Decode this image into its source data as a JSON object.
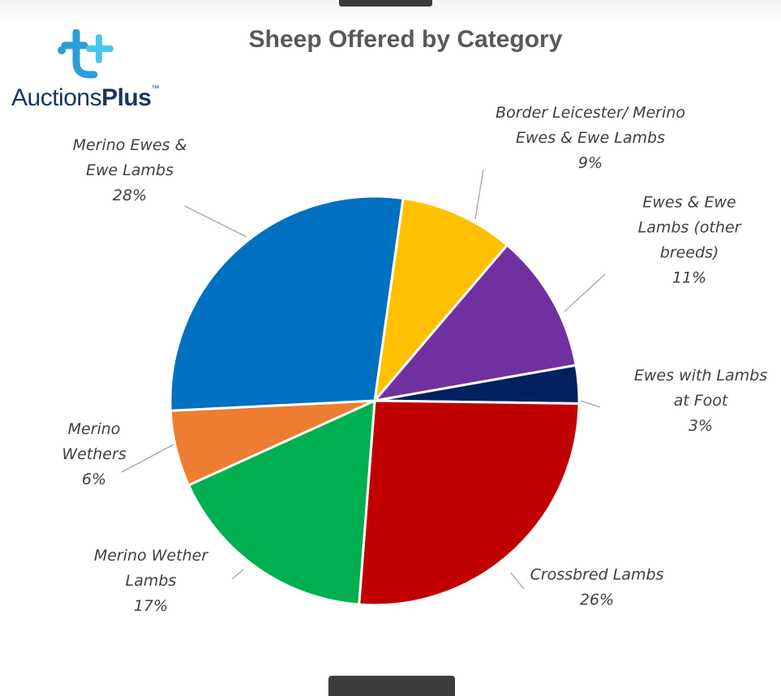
{
  "logo": {
    "brand_light": "Auctions",
    "brand_bold": "Plus",
    "trademark": "™"
  },
  "chart_data": {
    "type": "pie",
    "title": "Sheep Offered by Category",
    "slices": [
      {
        "lines": [
          "Border Leicester/ Merino",
          "Ewes & Ewe Lambs"
        ],
        "value": 9,
        "label": "9%",
        "color": "#ffc000"
      },
      {
        "lines": [
          "Ewes & Ewe",
          "Lambs (other",
          "breeds)"
        ],
        "value": 11,
        "label": "11%",
        "color": "#7030a0"
      },
      {
        "lines": [
          "Ewes with Lambs",
          "at Foot"
        ],
        "value": 3,
        "label": "3%",
        "color": "#002060"
      },
      {
        "lines": [
          "Crossbred Lambs"
        ],
        "value": 26,
        "label": "26%",
        "color": "#c00000"
      },
      {
        "lines": [
          "Merino Wether",
          "Lambs"
        ],
        "value": 17,
        "label": "17%",
        "color": "#00b050"
      },
      {
        "lines": [
          "Merino",
          "Wethers"
        ],
        "value": 6,
        "label": "6%",
        "color": "#ed7d31"
      },
      {
        "lines": [
          "Merino Ewes &",
          "Ewe Lambs"
        ],
        "value": 28,
        "label": "28%",
        "color": "#0070c0"
      }
    ],
    "start_angle_deg": 8,
    "direction": "clockwise",
    "legend": "none",
    "labels": "outside-with-leader-lines"
  }
}
